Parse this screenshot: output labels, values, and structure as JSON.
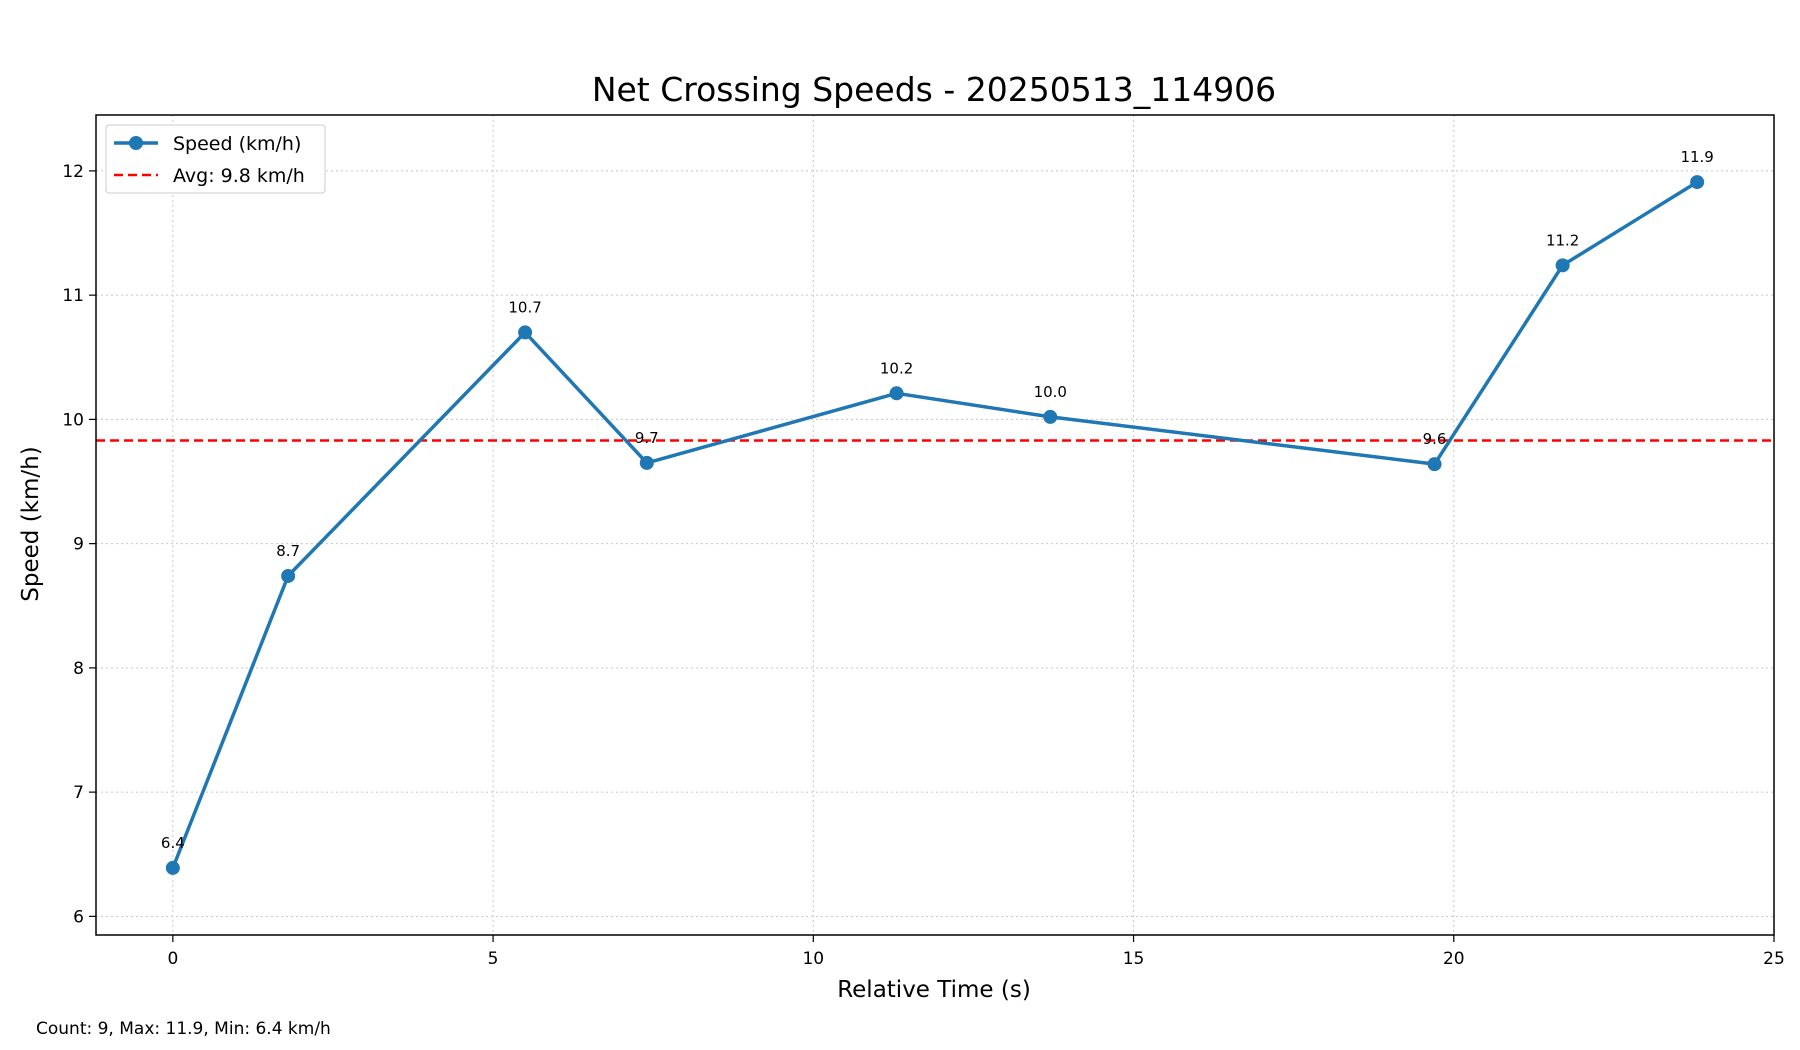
{
  "chart_data": {
    "type": "line",
    "title": "Net Crossing Speeds - 20250513_114906",
    "xlabel": "Relative Time (s)",
    "ylabel": "Speed (km/h)",
    "xlim": [
      -1.2,
      25
    ],
    "ylim": [
      5.85,
      12.45
    ],
    "xticks": [
      0,
      5,
      10,
      15,
      20,
      25
    ],
    "yticks": [
      6,
      7,
      8,
      9,
      10,
      11,
      12
    ],
    "grid": true,
    "legend_position": "top-left",
    "series": [
      {
        "name": "Speed (km/h)",
        "color": "#1f77b4",
        "x": [
          0,
          1.8,
          5.5,
          7.4,
          11.3,
          13.7,
          19.7,
          21.7,
          23.8
        ],
        "y": [
          6.39,
          8.74,
          10.7,
          9.65,
          10.21,
          10.02,
          9.64,
          11.24,
          11.91
        ],
        "labels": [
          "6.4",
          "8.7",
          "10.7",
          "9.7",
          "10.2",
          "10.0",
          "9.6",
          "11.2",
          "11.9"
        ]
      }
    ],
    "reference_lines": [
      {
        "name": "Avg: 9.8 km/h",
        "y": 9.83,
        "color": "#ff0000",
        "style": "dashed"
      }
    ],
    "footer": "Count: 9, Max: 11.9, Min: 6.4 km/h"
  }
}
